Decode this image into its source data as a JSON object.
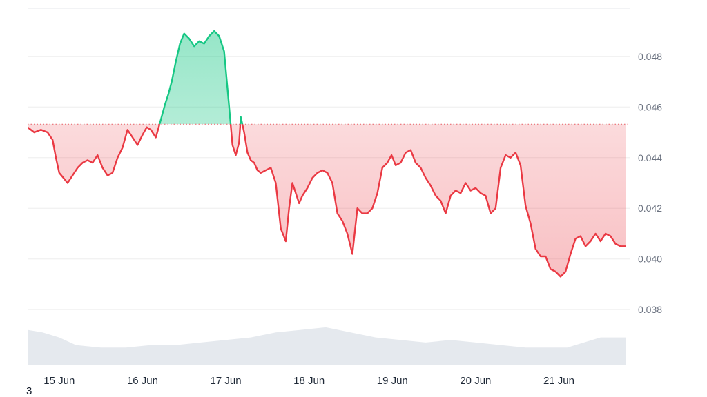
{
  "corner_note": "3",
  "colors": {
    "up_line": "#16c784",
    "down_line": "#ea3943",
    "up_fill": "#16c784",
    "down_fill": "#ea3943",
    "baseline": "#ea3943",
    "grid": "#eeeeee",
    "axis_text": "#6b7280",
    "volume_fill": "#e5e9ee"
  },
  "chart_data": {
    "type": "line",
    "title": "",
    "xlabel": "",
    "ylabel": "",
    "x_unit": "day",
    "x_ticks": [
      "15 Jun",
      "16 Jun",
      "17 Jun",
      "18 Jun",
      "19 Jun",
      "20 Jun",
      "21 Jun"
    ],
    "x_tick_values": [
      15,
      16,
      17,
      18,
      19,
      20,
      21
    ],
    "xlim": [
      14.62,
      21.85
    ],
    "y_ticks": [
      "0.038",
      "0.040",
      "0.042",
      "0.044",
      "0.046",
      "0.048"
    ],
    "y_tick_values": [
      0.038,
      0.04,
      0.042,
      0.044,
      0.046,
      0.048
    ],
    "ylim": [
      0.0358,
      0.0499
    ],
    "baseline": 0.04532,
    "grid": true,
    "legend": "none",
    "series": [
      {
        "kind": "price",
        "x": [
          14.62,
          14.7,
          14.78,
          14.86,
          14.92,
          14.96,
          15.0,
          15.05,
          15.1,
          15.16,
          15.22,
          15.28,
          15.34,
          15.4,
          15.46,
          15.52,
          15.58,
          15.64,
          15.7,
          15.76,
          15.82,
          15.88,
          15.94,
          16.0,
          16.05,
          16.1,
          16.16,
          16.22,
          16.27,
          16.31,
          16.35,
          16.4,
          16.45,
          16.5,
          16.56,
          16.62,
          16.68,
          16.74,
          16.8,
          16.86,
          16.92,
          16.98,
          17.04,
          17.08,
          17.12,
          17.16,
          17.18,
          17.22,
          17.26,
          17.3,
          17.34,
          17.38,
          17.42,
          17.48,
          17.54,
          17.6,
          17.66,
          17.72,
          17.76,
          17.8,
          17.84,
          17.88,
          17.92,
          17.98,
          18.04,
          18.1,
          18.16,
          18.22,
          18.28,
          18.34,
          18.4,
          18.46,
          18.52,
          18.58,
          18.64,
          18.7,
          18.76,
          18.82,
          18.88,
          18.94,
          18.99,
          19.04,
          19.1,
          19.16,
          19.22,
          19.28,
          19.34,
          19.4,
          19.46,
          19.52,
          19.58,
          19.64,
          19.7,
          19.76,
          19.82,
          19.88,
          19.94,
          20.0,
          20.06,
          20.12,
          20.18,
          20.24,
          20.3,
          20.36,
          20.42,
          20.48,
          20.54,
          20.6,
          20.66,
          20.72,
          20.78,
          20.84,
          20.9,
          20.96,
          21.02,
          21.08,
          21.14,
          21.2,
          21.26,
          21.32,
          21.38,
          21.44,
          21.5,
          21.56,
          21.62,
          21.68,
          21.74,
          21.8
        ],
        "y": [
          0.0452,
          0.045,
          0.0451,
          0.045,
          0.0447,
          0.044,
          0.0434,
          0.0432,
          0.043,
          0.0433,
          0.0436,
          0.0438,
          0.0439,
          0.0438,
          0.0441,
          0.0436,
          0.0433,
          0.0434,
          0.044,
          0.0444,
          0.0451,
          0.0448,
          0.0445,
          0.0449,
          0.0452,
          0.0451,
          0.0448,
          0.0455,
          0.0461,
          0.0465,
          0.047,
          0.0478,
          0.0485,
          0.0489,
          0.0487,
          0.0484,
          0.0486,
          0.0485,
          0.0488,
          0.049,
          0.0488,
          0.0482,
          0.046,
          0.0445,
          0.0441,
          0.0446,
          0.0456,
          0.045,
          0.0442,
          0.0439,
          0.0438,
          0.0435,
          0.0434,
          0.0435,
          0.0436,
          0.043,
          0.0412,
          0.0407,
          0.042,
          0.043,
          0.0426,
          0.0422,
          0.0425,
          0.0428,
          0.0432,
          0.0434,
          0.0435,
          0.0434,
          0.043,
          0.0418,
          0.0415,
          0.041,
          0.0402,
          0.042,
          0.0418,
          0.0418,
          0.042,
          0.0426,
          0.0436,
          0.0438,
          0.0441,
          0.0437,
          0.0438,
          0.0442,
          0.0443,
          0.0438,
          0.0436,
          0.0432,
          0.0429,
          0.0425,
          0.0423,
          0.0418,
          0.0425,
          0.0427,
          0.0426,
          0.043,
          0.0427,
          0.0428,
          0.0426,
          0.0425,
          0.0418,
          0.042,
          0.0436,
          0.0441,
          0.044,
          0.0442,
          0.0437,
          0.0421,
          0.0414,
          0.0404,
          0.0401,
          0.0401,
          0.0396,
          0.0395,
          0.0393,
          0.0395,
          0.0402,
          0.0408,
          0.0409,
          0.0405,
          0.0407,
          0.041,
          0.0407,
          0.041,
          0.0409,
          0.0406,
          0.0405,
          0.0405
        ]
      }
    ],
    "volume": {
      "x": [
        14.62,
        14.8,
        15.0,
        15.2,
        15.5,
        15.8,
        16.1,
        16.4,
        16.7,
        17.0,
        17.3,
        17.6,
        17.9,
        18.2,
        18.5,
        18.8,
        19.1,
        19.4,
        19.7,
        20.0,
        20.3,
        20.6,
        20.9,
        21.1,
        21.3,
        21.5,
        21.8
      ],
      "y": [
        0.0372,
        0.0371,
        0.0369,
        0.0366,
        0.0365,
        0.0365,
        0.0366,
        0.0366,
        0.0367,
        0.0368,
        0.0369,
        0.0371,
        0.0372,
        0.0373,
        0.0371,
        0.0369,
        0.0368,
        0.0367,
        0.0368,
        0.0367,
        0.0366,
        0.0365,
        0.0365,
        0.0365,
        0.0367,
        0.0369,
        0.0369
      ]
    }
  }
}
